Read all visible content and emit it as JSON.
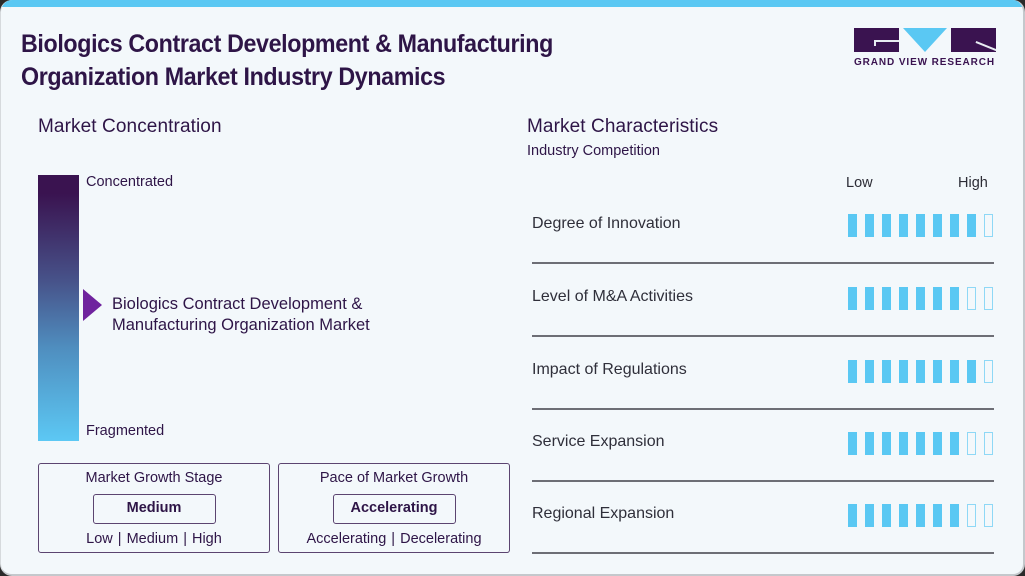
{
  "title": "Biologics Contract Development & Manufacturing Organization Market Industry Dynamics",
  "logo": {
    "text": "GRAND VIEW RESEARCH"
  },
  "colors": {
    "accent": "#5ac8f3",
    "brand_dark": "#3a1350",
    "pointer": "#6f239e",
    "background": "#f3f8fb"
  },
  "concentration": {
    "heading": "Market Concentration",
    "top_label": "Concentrated",
    "bottom_label": "Fragmented",
    "market_line1": "Biologics Contract Development &",
    "market_line2": "Manufacturing Organization Market",
    "pointer_position_pct": 50
  },
  "growth_stage": {
    "title": "Market Growth Stage",
    "value": "Medium",
    "scale": "Low | Medium | High"
  },
  "growth_pace": {
    "title": "Pace of Market Growth",
    "value": "Accelerating",
    "scale": "Accelerating | Decelerating"
  },
  "characteristics": {
    "heading": "Market Characteristics",
    "subheading": "Industry Competition",
    "low_label": "Low",
    "high_label": "High",
    "max_score": 9,
    "rows": [
      {
        "label": "Degree of Innovation",
        "score": 8
      },
      {
        "label": "Level of M&A Activities",
        "score": 7
      },
      {
        "label": "Impact of Regulations",
        "score": 8
      },
      {
        "label": "Service Expansion",
        "score": 7
      },
      {
        "label": "Regional Expansion",
        "score": 7
      }
    ]
  },
  "chart_data": {
    "type": "table",
    "title": "Biologics Contract Development & Manufacturing Organization Market Industry Dynamics",
    "market_concentration": "Midway between Concentrated and Fragmented",
    "market_growth_stage": "Medium",
    "pace_of_market_growth": "Accelerating",
    "categories": [
      "Degree of Innovation",
      "Level of M&A Activities",
      "Impact of Regulations",
      "Service Expansion",
      "Regional Expansion"
    ],
    "values": [
      8,
      7,
      8,
      7,
      7
    ],
    "scale": {
      "min_label": "Low",
      "max_label": "High",
      "max": 9
    }
  }
}
